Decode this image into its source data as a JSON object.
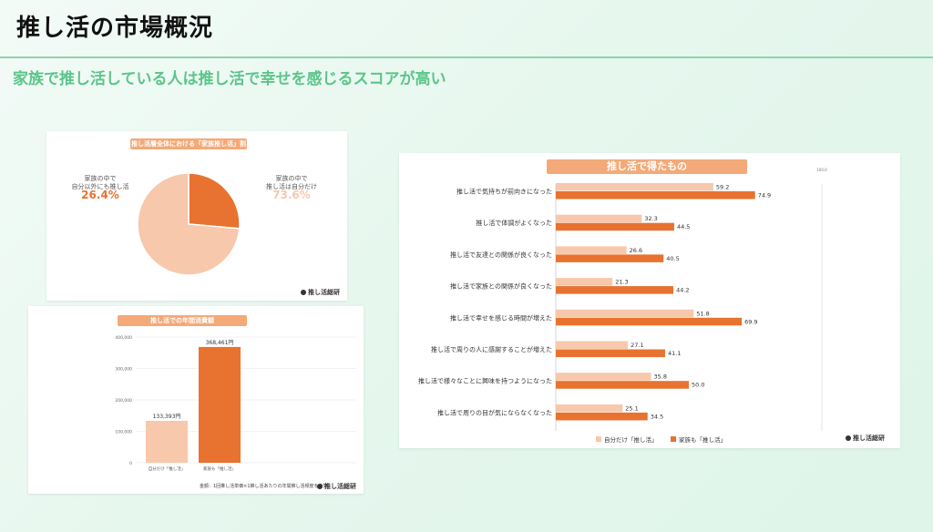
{
  "header": {
    "title": "推し活の市場概況",
    "subtitle": "家族で推し活している人は推し活で幸せを感じるスコアが高い"
  },
  "colors": {
    "light": "#f7c8ab",
    "dark": "#e8722f",
    "label_bg": "#f4a978",
    "accent_green": "#5cc58a"
  },
  "logo_text": "推し活総研",
  "pie_card": {
    "label": "推し活層全体における「家族推し活」割合",
    "left_label_line1": "家族の中で",
    "left_label_line2": "自分以外にも推し活",
    "left_pct": "26.4%",
    "right_label_line1": "家族の中で",
    "right_label_line2": "推し活は自分だけ",
    "right_pct": "73.6%"
  },
  "col_card": {
    "label": "推し活での年間消費額",
    "note": "金額：1回推し活単価×1推し活あたりの年間推し活頻度を合算"
  },
  "hbar_card": {
    "label": "推し活で得たもの",
    "top_tick": "100.0"
  },
  "chart_data": [
    {
      "type": "pie",
      "title": "推し活層全体における「家族推し活」割合",
      "labels": [
        "家族の中で自分以外にも推し活",
        "家族の中で推し活は自分だけ"
      ],
      "values": [
        26.4,
        73.6
      ]
    },
    {
      "type": "bar",
      "title": "推し活での年間消費額",
      "categories": [
        "自分だけ「推し活」",
        "家族も「推し活」"
      ],
      "values": [
        133393,
        368461
      ],
      "value_labels": [
        "133,393円",
        "368,461円"
      ],
      "ylim": [
        0,
        400000
      ],
      "yticks": [
        "0",
        "100,000",
        "200,000",
        "300,000",
        "400,000"
      ],
      "grid": true
    },
    {
      "type": "bar",
      "orientation": "horizontal",
      "title": "推し活で得たもの",
      "categories": [
        "推し活で気持ちが前向きになった",
        "推し活で体調がよくなった",
        "推し活で友達との関係が良くなった",
        "推し活で家族との関係が良くなった",
        "推し活で幸せを感じる時間が増えた",
        "推し活で周りの人に感謝することが増えた",
        "推し活で様々なことに興味を持つようになった",
        "推し活で周りの目が気にならなくなった"
      ],
      "series": [
        {
          "name": "自分だけ「推し活」",
          "values": [
            59.2,
            32.3,
            26.6,
            21.3,
            51.8,
            27.1,
            35.8,
            25.1
          ]
        },
        {
          "name": "家族も「推し活」",
          "values": [
            74.9,
            44.5,
            40.5,
            44.2,
            69.9,
            41.1,
            50.0,
            34.5
          ]
        }
      ],
      "xlim": [
        0,
        100
      ],
      "legend": "bottom"
    }
  ]
}
